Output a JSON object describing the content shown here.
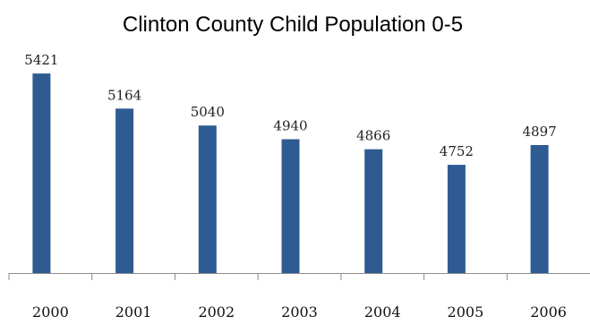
{
  "chart_data": {
    "type": "bar",
    "title": "Clinton County Child Population 0-5",
    "categories": [
      "2000",
      "2001",
      "2002",
      "2003",
      "2004",
      "2005",
      "2006"
    ],
    "values": [
      5421,
      5164,
      5040,
      4940,
      4866,
      4752,
      4897
    ],
    "data_labels": [
      "5421",
      "5164",
      "5040",
      "4940",
      "4866",
      "4752",
      "4897"
    ],
    "xlabel": "",
    "ylabel": "",
    "ylim": [
      3960,
      5500
    ],
    "grid": false,
    "legend": "none",
    "bar_color": "#2f5b93"
  }
}
